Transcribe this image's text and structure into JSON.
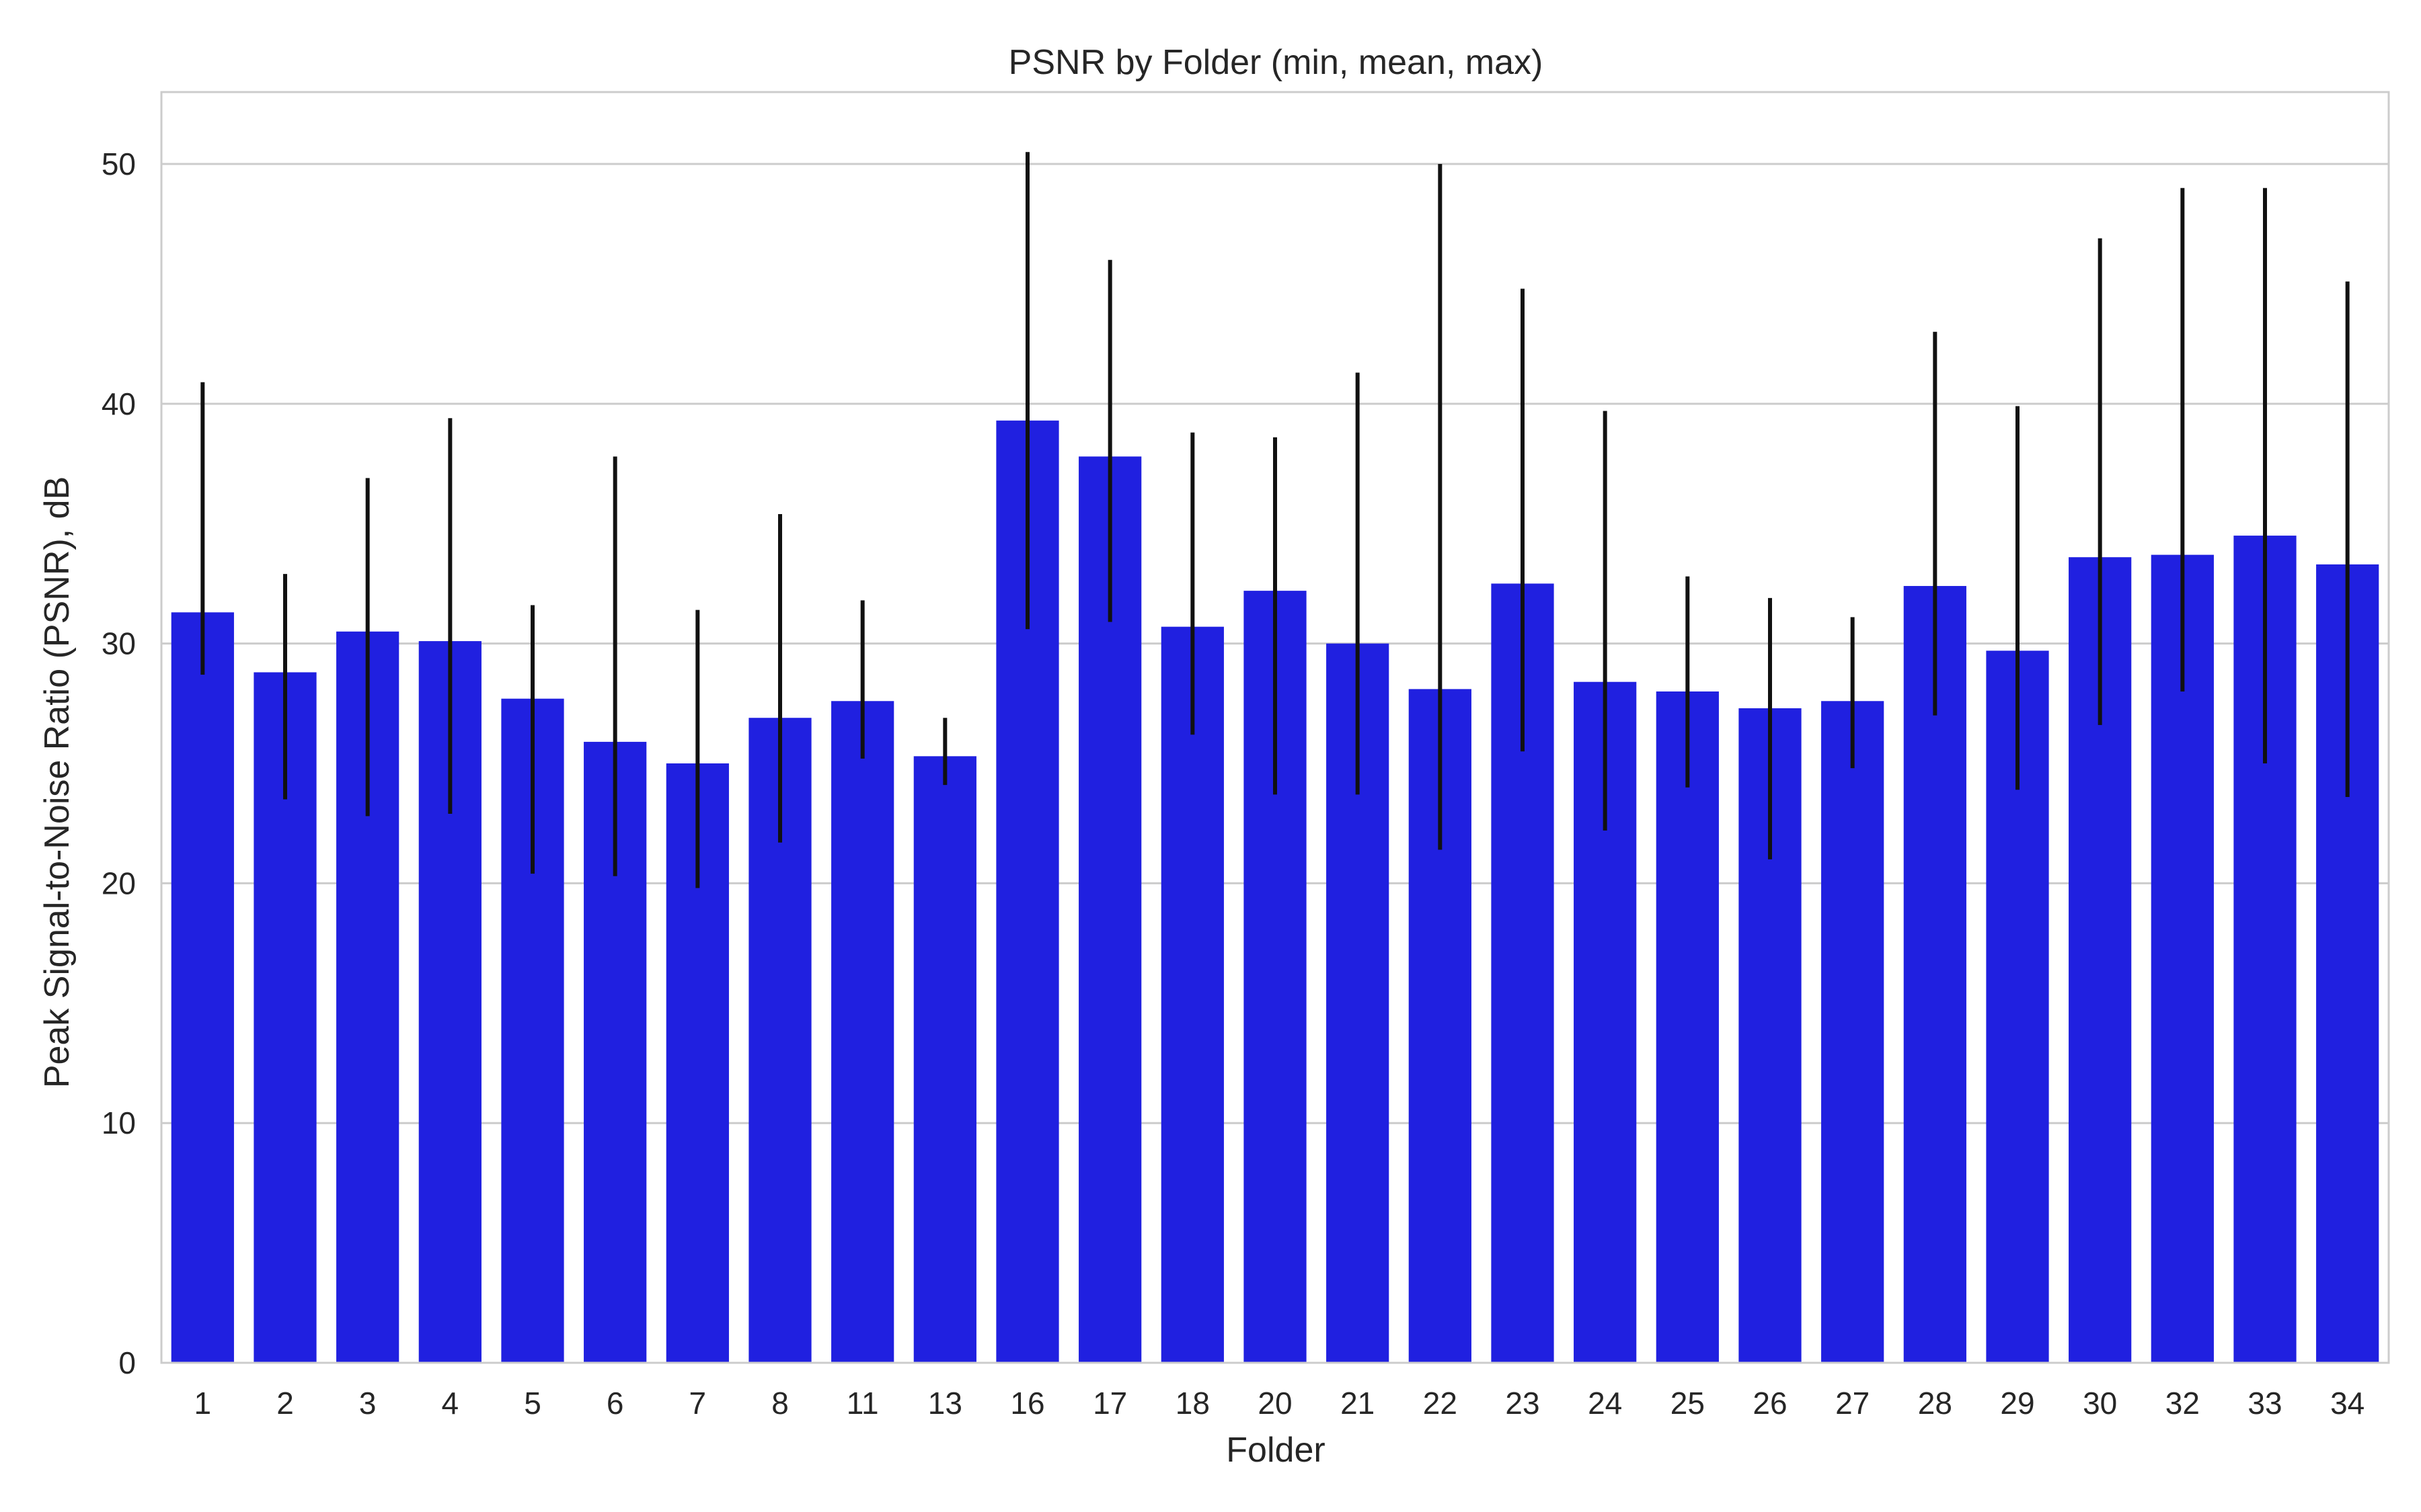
{
  "chart_data": {
    "type": "bar",
    "title": "PSNR by Folder (min, mean, max)",
    "xlabel": "Folder",
    "ylabel": "Peak Signal-to-Noise Ratio (PSNR), dB",
    "ylim": [
      0,
      53
    ],
    "yticks": [
      0,
      10,
      20,
      30,
      40,
      50
    ],
    "grid": true,
    "legend": "none",
    "bar_color": "#2020e0",
    "errorbar_color": "#111111",
    "categories": [
      "1",
      "2",
      "3",
      "4",
      "5",
      "6",
      "7",
      "8",
      "11",
      "13",
      "16",
      "17",
      "18",
      "20",
      "21",
      "22",
      "23",
      "24",
      "25",
      "26",
      "27",
      "28",
      "29",
      "30",
      "32",
      "33",
      "34"
    ],
    "series": [
      {
        "mean": [
          31.3,
          28.8,
          30.5,
          30.1,
          27.7,
          25.9,
          25.0,
          26.9,
          27.6,
          25.3,
          39.3,
          37.8,
          30.7,
          32.2,
          30.0,
          28.1,
          32.5,
          28.4,
          28.0,
          27.3,
          27.6,
          32.4,
          29.7,
          33.6,
          33.7,
          34.5,
          33.3
        ],
        "min": [
          28.7,
          23.5,
          22.8,
          22.9,
          20.4,
          20.3,
          19.8,
          21.7,
          25.2,
          24.1,
          30.6,
          30.9,
          26.2,
          23.7,
          23.7,
          21.4,
          25.5,
          22.2,
          24.0,
          21.0,
          24.8,
          27.0,
          23.9,
          26.6,
          28.0,
          25.0,
          23.6
        ],
        "max": [
          40.9,
          32.9,
          36.9,
          39.4,
          31.6,
          37.8,
          31.4,
          35.4,
          31.8,
          26.9,
          50.5,
          46.0,
          38.8,
          38.6,
          41.3,
          50.0,
          44.8,
          39.7,
          32.8,
          31.9,
          31.1,
          43.0,
          39.9,
          46.9,
          49.0,
          49.0,
          45.1
        ]
      }
    ]
  }
}
